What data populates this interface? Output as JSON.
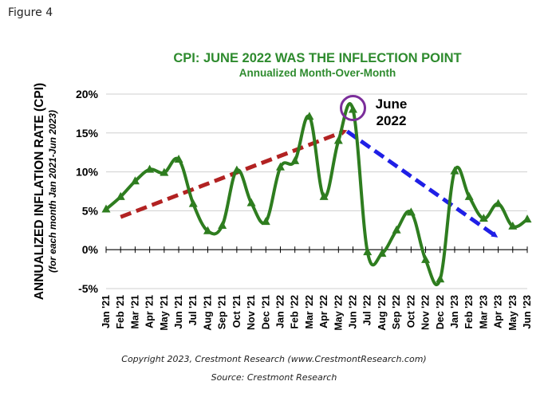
{
  "figure_label": "Figure 4",
  "copyright": "Copyright 2023, Crestmont Research (www.CrestmontResearch.com)",
  "source": "Source: Crestmont Research",
  "chart_data": {
    "type": "line",
    "title": "CPI: JUNE 2022 WAS THE INFLECTION POINT",
    "subtitle": "Annualized Month-Over-Month",
    "ylabel": "ANNUALIZED INFLATION RATE (CPI)",
    "ylabel_sub": "(for each month Jan 2021-Jun 2023)",
    "ylim": [
      -5,
      20
    ],
    "yticks": [
      -5,
      0,
      5,
      10,
      15,
      20
    ],
    "ytick_labels": [
      "-5%",
      "0%",
      "5%",
      "10%",
      "15%",
      "20%"
    ],
    "grid": "horizontal",
    "series_color": "#2e7d1f",
    "categories": [
      "Jan '21",
      "Feb '21",
      "Mar '21",
      "Apr '21",
      "May '21",
      "Jun '21",
      "Jul '21",
      "Aug '21",
      "Sep '21",
      "Oct '21",
      "Nov '21",
      "Dec '21",
      "Jan '22",
      "Feb '22",
      "Mar '22",
      "Apr '22",
      "May '22",
      "Jun '22",
      "Jul '22",
      "Aug '22",
      "Sep '22",
      "Oct '22",
      "Nov '22",
      "Dec '22",
      "Jan '23",
      "Feb '23",
      "Mar '23",
      "Apr '23",
      "May '23",
      "Jun '23"
    ],
    "values": [
      5.2,
      6.8,
      8.8,
      10.3,
      9.9,
      11.6,
      5.9,
      2.4,
      3.1,
      10.2,
      6.0,
      3.6,
      10.6,
      11.4,
      17.1,
      6.8,
      14.0,
      18.0,
      -0.3,
      -0.5,
      2.5,
      4.8,
      -1.3,
      -3.8,
      10.1,
      6.8,
      4.0,
      5.9,
      3.0,
      3.9
    ],
    "annotation": {
      "lines": [
        "June",
        "2022"
      ],
      "marked_category": "Jun '22",
      "circle_color": "#7b2d9a"
    },
    "trend_arrows": [
      {
        "color": "#b22222",
        "from": [
          1,
          4.2
        ],
        "to": [
          16.4,
          15.2
        ]
      },
      {
        "color": "#1f1fe6",
        "from": [
          16.6,
          15.2
        ],
        "to": [
          26.8,
          1.8
        ]
      }
    ]
  }
}
